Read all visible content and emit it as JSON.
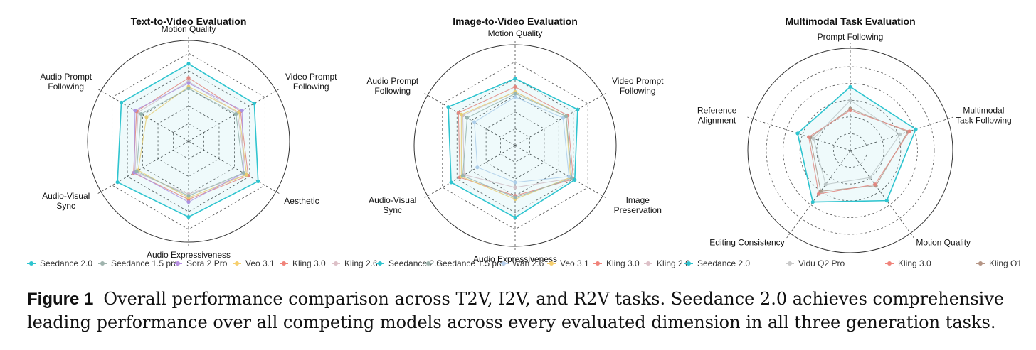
{
  "chart_data": [
    {
      "type": "radar",
      "title": "Text-to-Video Evaluation",
      "axes": [
        "Motion Quality",
        "Video Prompt Following",
        "Aesthetic",
        "Audio Expressiveness",
        "Audio-Visual Sync",
        "Audio Prompt Following"
      ],
      "series": [
        {
          "name": "Seedance 2.0",
          "color": "#2ec4cf",
          "values": [
            0.88,
            0.86,
            0.91,
            0.86,
            0.93,
            0.88
          ]
        },
        {
          "name": "Seedance 1.5 pro",
          "color": "#9fb3ad",
          "values": [
            0.6,
            0.62,
            0.72,
            0.62,
            0.68,
            0.62
          ]
        },
        {
          "name": "Sora 2 Pro",
          "color": "#b78fe3",
          "values": [
            0.66,
            0.7,
            0.72,
            0.69,
            0.71,
            0.7
          ]
        },
        {
          "name": "Veo 3.1",
          "color": "#f6cf6e",
          "values": [
            0.62,
            0.66,
            0.76,
            0.64,
            0.66,
            0.55
          ]
        },
        {
          "name": "Kling 3.0",
          "color": "#f0837a",
          "values": [
            0.72,
            0.68,
            0.78,
            0.66,
            0.72,
            0.68
          ]
        },
        {
          "name": "Kling 2.6",
          "color": "#ddc0c7",
          "values": [
            0.68,
            0.64,
            0.76,
            0.6,
            0.7,
            0.66
          ]
        }
      ]
    },
    {
      "type": "radar",
      "title": "Image-to-Video Evaluation",
      "axes": [
        "Motion Quality",
        "Video Prompt Following",
        "Image Preservation",
        "Audio Expressiveness",
        "Audio-Visual Sync",
        "Audio Prompt Following"
      ],
      "series": [
        {
          "name": "Seedance 2.0",
          "color": "#2ec4cf",
          "values": [
            0.8,
            0.86,
            0.82,
            0.86,
            0.88,
            0.92
          ]
        },
        {
          "name": "Seedance 1.5 pro",
          "color": "#9fb3ad",
          "values": [
            0.62,
            0.7,
            0.78,
            0.62,
            0.72,
            0.66
          ]
        },
        {
          "name": "Wan 2.6",
          "color": "#b8d0ec",
          "values": [
            0.58,
            0.66,
            0.74,
            0.44,
            0.52,
            0.56
          ]
        },
        {
          "name": "Veo 3.1",
          "color": "#f6cf6e",
          "values": [
            0.64,
            0.7,
            0.76,
            0.64,
            0.74,
            0.74
          ]
        },
        {
          "name": "Kling 3.0",
          "color": "#f0837a",
          "values": [
            0.7,
            0.72,
            0.8,
            0.6,
            0.76,
            0.78
          ]
        },
        {
          "name": "Kling 2.6",
          "color": "#ddc0c7",
          "values": [
            0.64,
            0.7,
            0.78,
            0.5,
            0.7,
            0.72
          ]
        }
      ]
    },
    {
      "type": "radar",
      "title": "Multimodal Task Evaluation",
      "axes": [
        "Prompt Following",
        "Multimodal Task Following",
        "Motion Quality",
        "Editing Consistency",
        "Reference Alignment"
      ],
      "series": [
        {
          "name": "Seedance 2.0",
          "color": "#2ec4cf",
          "values": [
            0.76,
            0.82,
            0.74,
            0.76,
            0.66
          ]
        },
        {
          "name": "Vidu Q2 Pro",
          "color": "#c9c9c9",
          "values": [
            0.6,
            0.62,
            0.4,
            0.5,
            0.46
          ]
        },
        {
          "name": "Kling 3.0",
          "color": "#f0837a",
          "values": [
            0.48,
            0.74,
            0.5,
            0.64,
            0.52
          ]
        },
        {
          "name": "Kling O1",
          "color": "#b59585",
          "values": [
            0.5,
            0.72,
            0.52,
            0.6,
            0.5
          ]
        }
      ]
    }
  ],
  "legend1": [
    "Seedance 2.0",
    "Seedance 1.5 pro",
    "Sora 2 Pro",
    "Veo 3.1",
    "Kling 3.0",
    "Kling 2.6"
  ],
  "legend2": [
    "Seedance 2.0",
    "Seedance 1.5 pro",
    "Wan 2.6",
    "Veo 3.1",
    "Kling 3.0",
    "Kling 2.6"
  ],
  "legend3": [
    "Seedance 2.0",
    "Vidu Q2 Pro",
    "Kling 3.0",
    "Kling O1"
  ],
  "caption": {
    "label": "Figure 1",
    "text": "Overall performance comparison across T2V, I2V, and R2V tasks. Seedance 2.0 achieves comprehensive leading performance over all competing models across every evaluated dimension in all three generation tasks."
  }
}
